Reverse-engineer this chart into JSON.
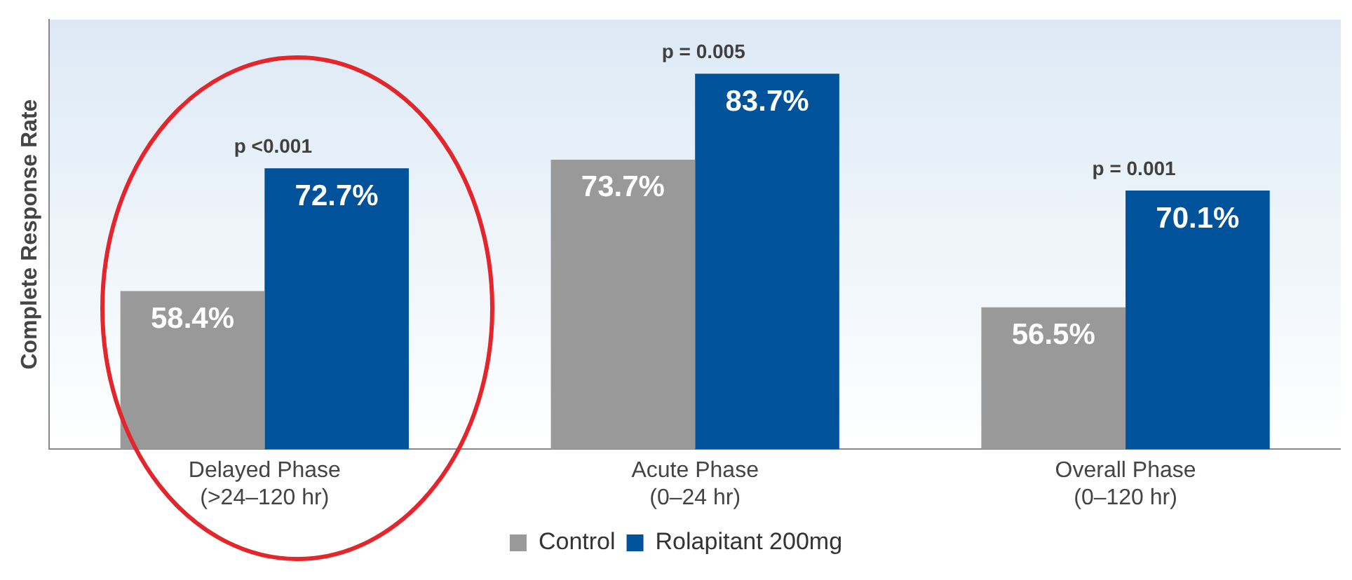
{
  "chart_data": {
    "type": "bar",
    "ylabel": "Complete Response Rate",
    "categories": [
      "Delayed Phase\n(>24–120 hr)",
      "Acute Phase\n(0–24 hr)",
      "Overall Phase\n(0–120 hr)"
    ],
    "series": [
      {
        "name": "Control",
        "color": "#999999",
        "values": [
          58.4,
          73.7,
          56.5
        ],
        "value_labels": [
          "58.4%",
          "73.7%",
          "56.5%"
        ]
      },
      {
        "name": "Rolapitant 200mg",
        "color": "#00529b",
        "values": [
          72.7,
          83.7,
          70.1
        ],
        "value_labels": [
          "72.7%",
          "83.7%",
          "70.1%"
        ]
      }
    ],
    "ylim": [
      40,
      90
    ],
    "tick_labels": "x",
    "grid": false,
    "legend": "bottom",
    "annotations": [
      {
        "text": "p <0.001",
        "x": "Delayed Phase\n(>24–120 hr)",
        "y": 72.7
      },
      {
        "text": "p = 0.005",
        "x": "Acute Phase\n(0–24 hr)",
        "y": 83.7
      },
      {
        "text": "p = 0.001",
        "x": "Overall Phase\n(0–120 hr)",
        "y": 70.1
      }
    ]
  }
}
